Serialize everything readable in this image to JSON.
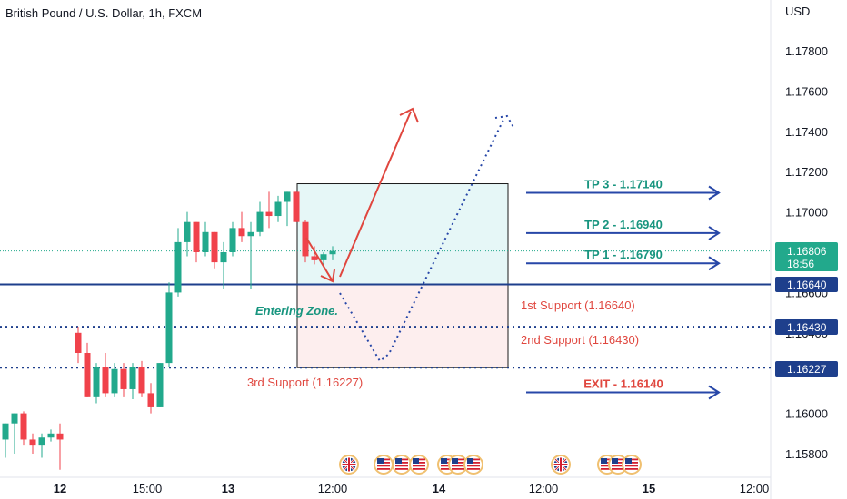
{
  "chart_data": {
    "type": "candlestick",
    "title": "British Pound / U.S. Dollar, 1h, FXCM",
    "y_unit": "USD",
    "ylim": [
      1.157,
      1.181
    ],
    "y_ticks": [
      "1.17800",
      "1.17600",
      "1.17400",
      "1.17200",
      "1.17000",
      "1.16800",
      "1.16600",
      "1.16400",
      "1.16200",
      "1.16000",
      "1.15800"
    ],
    "x_ticks": [
      "12",
      "15:00",
      "13",
      "12:00",
      "14",
      "12:00",
      "15",
      "12:00"
    ],
    "candles": [
      {
        "o": 1.1587,
        "h": 1.1595,
        "l": 1.1578,
        "c": 1.1595
      },
      {
        "o": 1.1595,
        "h": 1.16,
        "l": 1.158,
        "c": 1.16
      },
      {
        "o": 1.16,
        "h": 1.1601,
        "l": 1.1584,
        "c": 1.1587
      },
      {
        "o": 1.1587,
        "h": 1.159,
        "l": 1.158,
        "c": 1.1584
      },
      {
        "o": 1.1584,
        "h": 1.159,
        "l": 1.1578,
        "c": 1.1588
      },
      {
        "o": 1.1588,
        "h": 1.1592,
        "l": 1.1586,
        "c": 1.159
      },
      {
        "o": 1.159,
        "h": 1.1595,
        "l": 1.1572,
        "c": 1.1587
      },
      {
        "o": 1.164,
        "h": 1.1643,
        "l": 1.1625,
        "c": 1.163
      },
      {
        "o": 1.163,
        "h": 1.1635,
        "l": 1.1608,
        "c": 1.1608
      },
      {
        "o": 1.1608,
        "h": 1.1625,
        "l": 1.1605,
        "c": 1.1623
      },
      {
        "o": 1.1623,
        "h": 1.163,
        "l": 1.1608,
        "c": 1.161
      },
      {
        "o": 1.161,
        "h": 1.1625,
        "l": 1.1608,
        "c": 1.1622
      },
      {
        "o": 1.1622,
        "h": 1.1625,
        "l": 1.1608,
        "c": 1.1612
      },
      {
        "o": 1.1612,
        "h": 1.1625,
        "l": 1.1607,
        "c": 1.1623
      },
      {
        "o": 1.1623,
        "h": 1.1626,
        "l": 1.1608,
        "c": 1.161
      },
      {
        "o": 1.161,
        "h": 1.1615,
        "l": 1.16,
        "c": 1.1603
      },
      {
        "o": 1.1603,
        "h": 1.1625,
        "l": 1.1603,
        "c": 1.1625
      },
      {
        "o": 1.1625,
        "h": 1.1665,
        "l": 1.1623,
        "c": 1.166
      },
      {
        "o": 1.166,
        "h": 1.1692,
        "l": 1.1658,
        "c": 1.1685
      },
      {
        "o": 1.1685,
        "h": 1.17,
        "l": 1.1678,
        "c": 1.1695
      },
      {
        "o": 1.1695,
        "h": 1.1695,
        "l": 1.1675,
        "c": 1.168
      },
      {
        "o": 1.168,
        "h": 1.1695,
        "l": 1.1678,
        "c": 1.169
      },
      {
        "o": 1.169,
        "h": 1.169,
        "l": 1.1672,
        "c": 1.1675
      },
      {
        "o": 1.1675,
        "h": 1.1685,
        "l": 1.1662,
        "c": 1.168
      },
      {
        "o": 1.168,
        "h": 1.1695,
        "l": 1.1678,
        "c": 1.1692
      },
      {
        "o": 1.1692,
        "h": 1.17,
        "l": 1.1685,
        "c": 1.1688
      },
      {
        "o": 1.1688,
        "h": 1.1695,
        "l": 1.1662,
        "c": 1.169
      },
      {
        "o": 1.169,
        "h": 1.1705,
        "l": 1.1688,
        "c": 1.17
      },
      {
        "o": 1.17,
        "h": 1.171,
        "l": 1.1692,
        "c": 1.1698
      },
      {
        "o": 1.1698,
        "h": 1.1708,
        "l": 1.1695,
        "c": 1.1705
      },
      {
        "o": 1.1705,
        "h": 1.171,
        "l": 1.1693,
        "c": 1.171
      },
      {
        "o": 1.171,
        "h": 1.171,
        "l": 1.1695,
        "c": 1.1695
      },
      {
        "o": 1.1695,
        "h": 1.1696,
        "l": 1.1675,
        "c": 1.1678
      },
      {
        "o": 1.1678,
        "h": 1.1683,
        "l": 1.1674,
        "c": 1.1676
      },
      {
        "o": 1.1676,
        "h": 1.168,
        "l": 1.1674,
        "c": 1.1679
      },
      {
        "o": 1.1679,
        "h": 1.1683,
        "l": 1.1676,
        "c": 1.16806
      }
    ],
    "current_price": {
      "label": "1.16806",
      "timer": "18:56",
      "value": 1.16806,
      "color": "#22a98c"
    },
    "levels": [
      {
        "name": "entry",
        "label": "1.16640",
        "value": 1.1664,
        "style": "solid",
        "color": "#1e3f8c"
      },
      {
        "name": "support-2",
        "label": "1.16430",
        "value": 1.1643,
        "style": "dotted",
        "color": "#1e3f8c"
      },
      {
        "name": "support-3",
        "label": "1.16227",
        "value": 1.16227,
        "style": "dotted",
        "color": "#1e3f8c"
      }
    ],
    "targets": [
      {
        "name": "tp3",
        "label": "TP 3 - 1.17140",
        "value": 1.1714,
        "color": "#18957f"
      },
      {
        "name": "tp2",
        "label": "TP 2 - 1.16940",
        "value": 1.1694,
        "color": "#18957f"
      },
      {
        "name": "tp1",
        "label": "TP 1 - 1.16790",
        "value": 1.1679,
        "color": "#18957f"
      },
      {
        "name": "exit",
        "label": "EXIT - 1.16140",
        "value": 1.1614,
        "color": "#e0473f"
      }
    ],
    "annotations": {
      "entering_zone": "Entering Zone.",
      "support_1": "1st Support (1.16640)",
      "support_2": "2nd Support (1.16430)",
      "support_3": "3rd Support (1.16227)"
    },
    "position_box": {
      "top": 1.1714,
      "entry": 1.1664,
      "bottom": 1.16227
    },
    "events": {
      "uk_flag": "🇬🇧",
      "us_flag": "🇺🇸"
    },
    "colors": {
      "up": "#22a98c",
      "down": "#f0424b",
      "profit": "#e6f7f7",
      "loss": "#fdeeee",
      "arrow": "#e0473f",
      "dotted": "#2747a8",
      "level": "#1e3f8c"
    }
  }
}
